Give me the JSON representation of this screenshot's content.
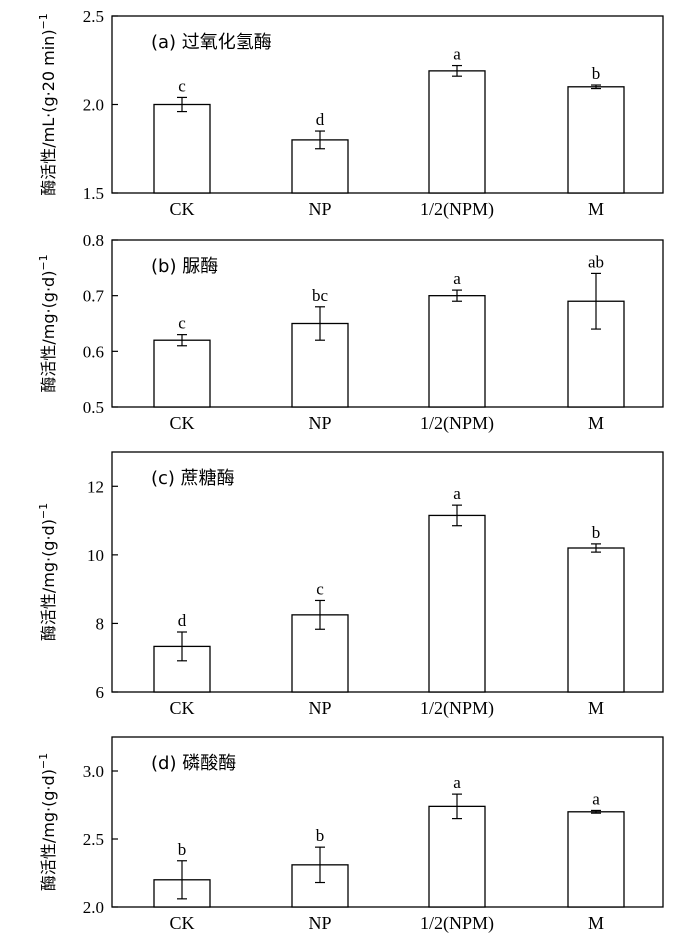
{
  "chart_data": [
    {
      "type": "bar",
      "title": "(a) 过氧化氢酶",
      "ylabel": "酶活性/mL·(g·20 min)",
      "ylabel_sup": "−1",
      "categories": [
        "CK",
        "NP",
        "1/2(NPM)",
        "M"
      ],
      "values": [
        2.0,
        1.8,
        2.19,
        2.1
      ],
      "errors": [
        0.04,
        0.05,
        0.03,
        0.01
      ],
      "letters": [
        "c",
        "d",
        "a",
        "b"
      ],
      "ylim": [
        1.5,
        2.5
      ],
      "yticks": [
        "1.5",
        "2.0",
        "2.5"
      ],
      "grid": false
    },
    {
      "type": "bar",
      "title": "(b) 脲酶",
      "ylabel": "酶活性/mg·(g·d)",
      "ylabel_sup": "−1",
      "categories": [
        "CK",
        "NP",
        "1/2(NPM)",
        "M"
      ],
      "values": [
        0.62,
        0.65,
        0.7,
        0.69
      ],
      "errors": [
        0.01,
        0.03,
        0.01,
        0.05
      ],
      "letters": [
        "c",
        "bc",
        "a",
        "ab"
      ],
      "ylim": [
        0.5,
        0.8
      ],
      "yticks": [
        "0.5",
        "0.6",
        "0.7",
        "0.8"
      ],
      "grid": false
    },
    {
      "type": "bar",
      "title": "(c) 蔗糖酶",
      "ylabel": "酶活性/mg·(g·d)",
      "ylabel_sup": "−1",
      "categories": [
        "CK",
        "NP",
        "1/2(NPM)",
        "M"
      ],
      "values": [
        7.33,
        8.25,
        11.15,
        10.2
      ],
      "errors": [
        0.42,
        0.42,
        0.3,
        0.12
      ],
      "letters": [
        "d",
        "c",
        "a",
        "b"
      ],
      "ylim": [
        6,
        13
      ],
      "yticks": [
        "6",
        "8",
        "10",
        "12"
      ],
      "grid": false
    },
    {
      "type": "bar",
      "title": "(d) 磷酸酶",
      "ylabel": "酶活性/mg·(g·d)",
      "ylabel_sup": "−1",
      "categories": [
        "CK",
        "NP",
        "1/2(NPM)",
        "M"
      ],
      "values": [
        2.2,
        2.31,
        2.74,
        2.7
      ],
      "errors": [
        0.14,
        0.13,
        0.09,
        0.01
      ],
      "letters": [
        "b",
        "b",
        "a",
        "a"
      ],
      "ylim": [
        2.0,
        3.25
      ],
      "yticks": [
        "2.0",
        "2.5",
        "3.0"
      ],
      "grid": false
    }
  ]
}
